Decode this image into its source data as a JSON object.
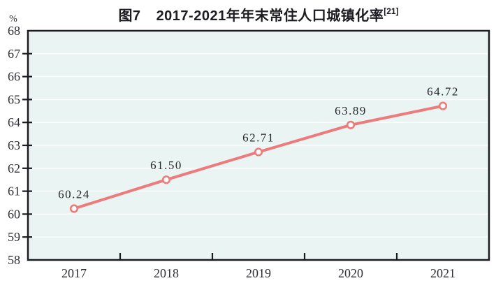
{
  "title": {
    "figure_no": "图7",
    "text": "2017-2021年年末常住人口城镇化率",
    "footnote_ref": "[21]"
  },
  "chart_data": {
    "type": "line",
    "title": "图7 2017-2021年年末常住人口城镇化率[21]",
    "unit_label": "%",
    "categories": [
      "2017",
      "2018",
      "2019",
      "2020",
      "2021"
    ],
    "series": [
      {
        "name": "年末常住人口城镇化率",
        "values": [
          60.24,
          61.5,
          62.71,
          63.89,
          64.72
        ],
        "point_labels": [
          "60.24",
          "61.50",
          "62.71",
          "63.89",
          "64.72"
        ]
      }
    ],
    "ylim": [
      58,
      68
    ],
    "ytick_interval": 1,
    "ytick_labels": [
      "68",
      "67",
      "66",
      "65",
      "64",
      "63",
      "62",
      "61",
      "60",
      "59",
      "58"
    ],
    "grid": true,
    "legend": "none",
    "marker": "open-circle",
    "styles": {
      "line_color": "#ee7b7b",
      "marker_fill": "#ffffff",
      "plot_bg": "#eaf5f3",
      "grid_color": "#fafdfc",
      "axis_color": "#1a1a20",
      "label_color": "#26262c"
    }
  }
}
